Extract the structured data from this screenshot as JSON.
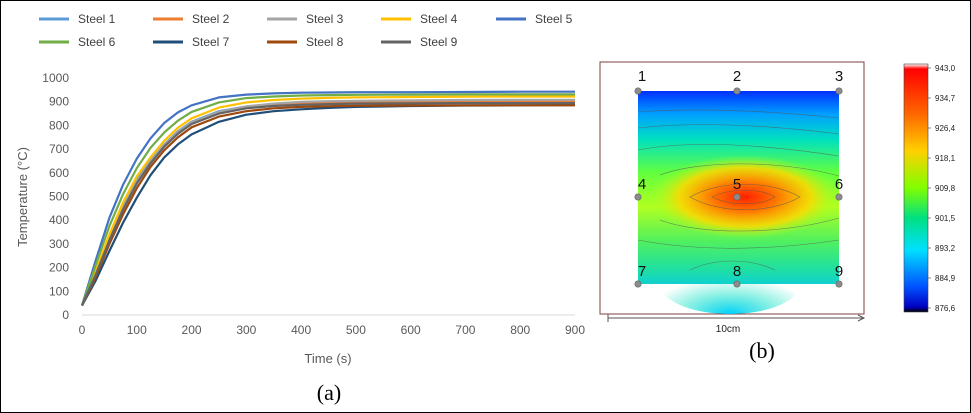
{
  "panel_labels": {
    "a": "(a)",
    "b": "(b)"
  },
  "chart_data": [
    {
      "type": "line",
      "title": "",
      "xlabel": "Time (s)",
      "ylabel": "Temperature (°C)",
      "xlim": [
        0,
        900
      ],
      "ylim": [
        0,
        1000
      ],
      "xticks": [
        "0",
        "100",
        "200",
        "300",
        "400",
        "500",
        "600",
        "700",
        "800",
        "900"
      ],
      "yticks": [
        "0",
        "100",
        "200",
        "300",
        "400",
        "500",
        "600",
        "700",
        "800",
        "900",
        "1000"
      ],
      "grid": false,
      "legend_position": "top",
      "x": [
        0,
        25,
        50,
        75,
        100,
        125,
        150,
        175,
        200,
        250,
        300,
        350,
        400,
        450,
        500,
        600,
        700,
        800,
        900
      ],
      "series": [
        {
          "name": "Steel 1",
          "color": "#5b9bd5",
          "values": [
            40,
            180,
            330,
            460,
            570,
            650,
            720,
            775,
            815,
            860,
            880,
            888,
            893,
            895,
            897,
            898,
            899,
            900,
            900
          ]
        },
        {
          "name": "Steel 2",
          "color": "#ed7d31",
          "values": [
            40,
            170,
            315,
            445,
            560,
            645,
            715,
            770,
            812,
            855,
            876,
            886,
            892,
            896,
            898,
            900,
            901,
            902,
            902
          ]
        },
        {
          "name": "Steel 3",
          "color": "#a5a5a5",
          "values": [
            40,
            175,
            325,
            455,
            565,
            648,
            718,
            772,
            812,
            857,
            880,
            892,
            899,
            902,
            904,
            906,
            907,
            908,
            908
          ]
        },
        {
          "name": "Steel 4",
          "color": "#ffc000",
          "values": [
            40,
            185,
            340,
            475,
            585,
            665,
            735,
            790,
            830,
            875,
            897,
            907,
            913,
            916,
            918,
            920,
            921,
            922,
            922
          ]
        },
        {
          "name": "Steel 5",
          "color": "#4472c4",
          "values": [
            40,
            230,
            410,
            550,
            660,
            745,
            810,
            855,
            885,
            918,
            930,
            935,
            938,
            939,
            940,
            940,
            941,
            942,
            942
          ]
        },
        {
          "name": "Steel 6",
          "color": "#70ad47",
          "values": [
            40,
            210,
            375,
            510,
            620,
            705,
            770,
            820,
            857,
            897,
            915,
            922,
            926,
            928,
            929,
            930,
            931,
            931,
            931
          ]
        },
        {
          "name": "Steel 7",
          "color": "#1f4e79",
          "values": [
            40,
            145,
            270,
            390,
            495,
            590,
            665,
            720,
            762,
            815,
            845,
            860,
            868,
            874,
            878,
            882,
            884,
            885,
            886
          ]
        },
        {
          "name": "Steel 8",
          "color": "#9e480e",
          "values": [
            40,
            160,
            300,
            425,
            535,
            625,
            695,
            750,
            792,
            837,
            860,
            872,
            878,
            881,
            883,
            884,
            885,
            885,
            885
          ]
        },
        {
          "name": "Steel 9",
          "color": "#636363",
          "values": [
            40,
            170,
            315,
            445,
            555,
            640,
            710,
            765,
            806,
            850,
            872,
            882,
            887,
            890,
            892,
            893,
            894,
            894,
            894
          ]
        }
      ]
    },
    {
      "type": "heatmap",
      "xlabel": "10cm",
      "colorbar_ticks": [
        "943,0",
        "934,7",
        "926,4",
        "918,1",
        "909,8",
        "901,5",
        "893,2",
        "884,9",
        "876,6"
      ],
      "colorbar_range": [
        876.6,
        943.0
      ],
      "point_labels": [
        "1",
        "2",
        "3",
        "4",
        "5",
        "6",
        "7",
        "8",
        "9"
      ],
      "grid_values": [
        [
          878,
          880,
          884
        ],
        [
          918,
          940,
          920
        ],
        [
          912,
          895,
          912
        ]
      ]
    }
  ]
}
